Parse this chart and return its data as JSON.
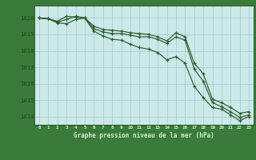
{
  "x": [
    0,
    1,
    2,
    3,
    4,
    5,
    6,
    7,
    8,
    9,
    10,
    11,
    12,
    13,
    14,
    15,
    16,
    17,
    18,
    19,
    20,
    21,
    22,
    23
  ],
  "line1": [
    1020.0,
    1019.95,
    1019.8,
    1020.1,
    1020.05,
    1020.0,
    1019.5,
    1019.3,
    1019.25,
    1019.2,
    1019.1,
    1019.05,
    1019.0,
    1018.85,
    1018.6,
    1019.1,
    1018.85,
    1017.25,
    1016.6,
    1015.05,
    1014.85,
    1014.55,
    1014.2,
    1014.3
  ],
  "line2": [
    1020.0,
    1019.95,
    1019.75,
    1019.9,
    1020.1,
    1020.0,
    1019.35,
    1019.15,
    1019.05,
    1019.05,
    1018.95,
    1018.85,
    1018.85,
    1018.7,
    1018.45,
    1018.85,
    1018.65,
    1016.9,
    1016.15,
    1014.85,
    1014.6,
    1014.3,
    1013.95,
    1014.1
  ],
  "line3": [
    1020.0,
    1019.95,
    1019.7,
    1019.65,
    1019.9,
    1020.0,
    1019.2,
    1018.9,
    1018.7,
    1018.65,
    1018.4,
    1018.2,
    1018.1,
    1017.9,
    1017.45,
    1017.65,
    1017.25,
    1015.85,
    1015.15,
    1014.55,
    1014.45,
    1014.1,
    1013.75,
    1014.0
  ],
  "bg_color": "#cce8e8",
  "plot_bg_color": "#cce8e8",
  "bottom_bg_color": "#3a7a3a",
  "line_color": "#2d5a2d",
  "grid_color": "#99cccc",
  "axis_color": "#2d5a2d",
  "tick_label_color": "#1a4a1a",
  "bottom_text_color": "#d4f0d4",
  "xlabel": "Graphe pression niveau de la mer (hPa)",
  "ylim": [
    1013.5,
    1020.75
  ],
  "yticks": [
    1014,
    1015,
    1016,
    1017,
    1018,
    1019,
    1020
  ],
  "xlim": [
    -0.5,
    23.5
  ],
  "figsize": [
    3.2,
    2.0
  ],
  "dpi": 100
}
